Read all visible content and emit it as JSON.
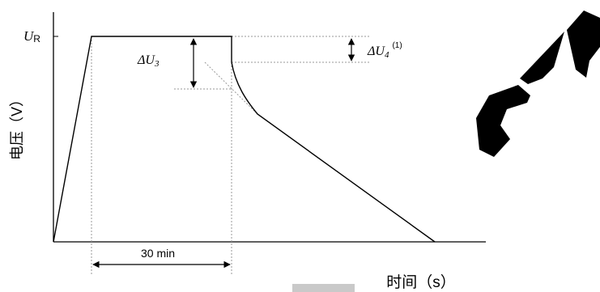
{
  "y_axis": {
    "label": "电压（V）",
    "ur_symbol": "U",
    "ur_subscript": "R"
  },
  "x_axis": {
    "label": "时间（s）"
  },
  "annotations": {
    "du3_delta": "ΔU",
    "du3_sub": "3",
    "du4_delta": "ΔU",
    "du4_sub": "4",
    "du4_note": "(1)",
    "duration": "30 min"
  },
  "watermark": {
    "text": "CAP",
    "color": "#000000"
  },
  "colors": {
    "curve": "#000000",
    "guide": "#9a9a9a"
  }
}
